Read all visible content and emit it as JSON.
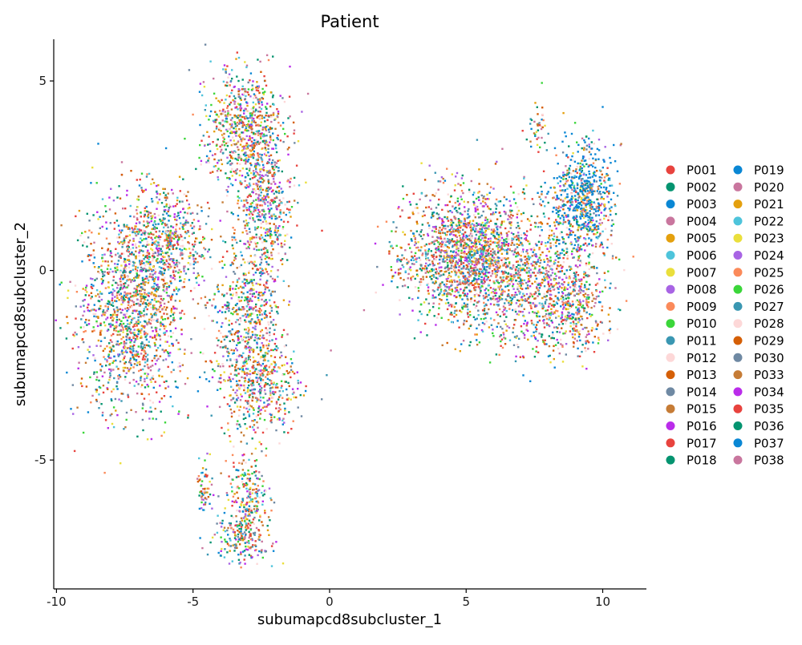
{
  "chart_data": {
    "type": "scatter",
    "title": "Patient",
    "xlabel": "subumapcd8subcluster_1",
    "ylabel": "subumapcd8subcluster_2",
    "xlim": [
      -10.1,
      11.6
    ],
    "ylim": [
      -8.4,
      6.1
    ],
    "xticks": [
      -10,
      -5,
      0,
      5,
      10
    ],
    "xtick_labels": [
      "-10",
      "-5",
      "0",
      "5",
      "10"
    ],
    "yticks": [
      -5,
      0,
      5
    ],
    "ytick_labels": [
      "-5",
      "0",
      "5"
    ],
    "grid": false,
    "legend_position": "right",
    "legend_columns": 2,
    "series": [
      {
        "name": "P001",
        "color": "#E8433E"
      },
      {
        "name": "P002",
        "color": "#049470"
      },
      {
        "name": "P003",
        "color": "#0A87D4"
      },
      {
        "name": "P004",
        "color": "#C9769E"
      },
      {
        "name": "P005",
        "color": "#E4A00E"
      },
      {
        "name": "P006",
        "color": "#4EC4DB"
      },
      {
        "name": "P007",
        "color": "#EADF3C"
      },
      {
        "name": "P008",
        "color": "#A864E4"
      },
      {
        "name": "P009",
        "color": "#FB8A5A"
      },
      {
        "name": "P010",
        "color": "#3BD63A"
      },
      {
        "name": "P011",
        "color": "#3A97B2"
      },
      {
        "name": "P012",
        "color": "#FDD8D8"
      },
      {
        "name": "P013",
        "color": "#D55F06"
      },
      {
        "name": "P014",
        "color": "#6F89A3"
      },
      {
        "name": "P015",
        "color": "#C67C36"
      },
      {
        "name": "P016",
        "color": "#BA2CEA"
      },
      {
        "name": "P017",
        "color": "#E8433E"
      },
      {
        "name": "P018",
        "color": "#049470"
      },
      {
        "name": "P019",
        "color": "#0A87D4"
      },
      {
        "name": "P020",
        "color": "#C9769E"
      },
      {
        "name": "P021",
        "color": "#E4A00E"
      },
      {
        "name": "P022",
        "color": "#4EC4DB"
      },
      {
        "name": "P023",
        "color": "#EADF3C"
      },
      {
        "name": "P024",
        "color": "#A864E4"
      },
      {
        "name": "P025",
        "color": "#FB8A5A"
      },
      {
        "name": "P026",
        "color": "#3BD63A"
      },
      {
        "name": "P027",
        "color": "#3A97B2"
      },
      {
        "name": "P028",
        "color": "#FDD8D8"
      },
      {
        "name": "P029",
        "color": "#D55F06"
      },
      {
        "name": "P030",
        "color": "#6F89A3"
      },
      {
        "name": "P033",
        "color": "#C67C36"
      },
      {
        "name": "P034",
        "color": "#BA2CEA"
      },
      {
        "name": "P035",
        "color": "#E8433E"
      },
      {
        "name": "P036",
        "color": "#049470"
      },
      {
        "name": "P037",
        "color": "#0A87D4"
      },
      {
        "name": "P038",
        "color": "#C9769E"
      }
    ],
    "clusters": [
      {
        "center": [
          -7.2,
          -1.0
        ],
        "spread": [
          1.0,
          1.3
        ],
        "n": 1500
      },
      {
        "center": [
          -6.0,
          0.8
        ],
        "spread": [
          0.8,
          0.7
        ],
        "n": 500
      },
      {
        "center": [
          -3.1,
          3.7
        ],
        "spread": [
          0.7,
          0.8
        ],
        "n": 700
      },
      {
        "center": [
          -2.4,
          1.8
        ],
        "spread": [
          0.5,
          0.9
        ],
        "n": 500
      },
      {
        "center": [
          -3.0,
          -1.2
        ],
        "spread": [
          0.6,
          1.1
        ],
        "n": 550
      },
      {
        "center": [
          -2.6,
          -3.0
        ],
        "spread": [
          0.7,
          0.7
        ],
        "n": 450
      },
      {
        "center": [
          -3.0,
          -5.9
        ],
        "spread": [
          0.35,
          0.6
        ],
        "n": 220
      },
      {
        "center": [
          -3.2,
          -7.0
        ],
        "spread": [
          0.55,
          0.35
        ],
        "n": 200
      },
      {
        "center": [
          -4.6,
          -5.8
        ],
        "spread": [
          0.15,
          0.35
        ],
        "n": 60
      },
      {
        "center": [
          5.0,
          0.4
        ],
        "spread": [
          1.1,
          0.85
        ],
        "n": 1600
      },
      {
        "center": [
          7.5,
          -0.3
        ],
        "spread": [
          1.2,
          0.9
        ],
        "n": 900
      },
      {
        "center": [
          9.3,
          1.8
        ],
        "spread": [
          0.55,
          0.75
        ],
        "n": 450
      },
      {
        "center": [
          9.0,
          -1.0
        ],
        "spread": [
          0.6,
          0.6
        ],
        "n": 300
      },
      {
        "center": [
          7.6,
          3.8
        ],
        "spread": [
          0.2,
          0.3
        ],
        "n": 40
      },
      {
        "center": [
          2.5,
          -0.1
        ],
        "spread": [
          0.3,
          0.3
        ],
        "n": 30
      }
    ],
    "highlight_cluster": {
      "center": [
        9.3,
        2.0
      ],
      "spread": [
        0.5,
        0.7
      ],
      "n": 250,
      "series": "P037"
    }
  }
}
